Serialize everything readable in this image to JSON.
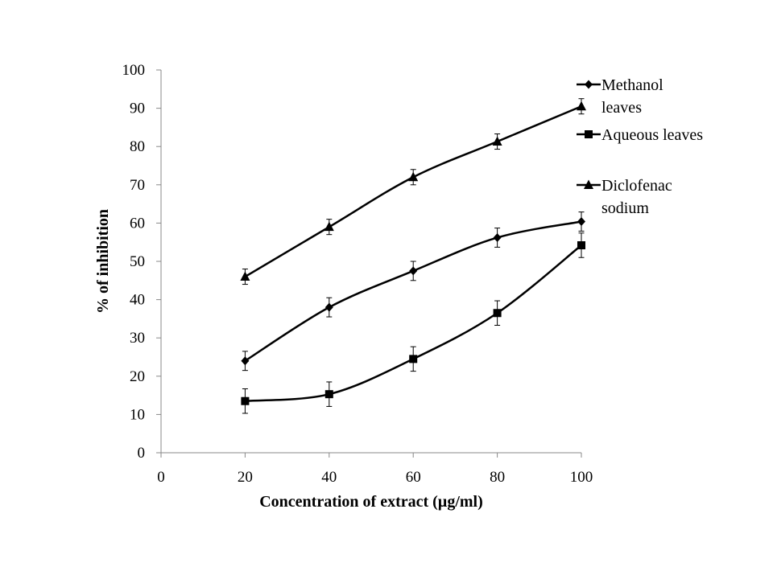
{
  "chart_data": {
    "type": "line",
    "title": "",
    "xlabel": "Concentration of extract (µg/ml)",
    "ylabel": "% of inhibition",
    "xlim": [
      0,
      100
    ],
    "ylim": [
      0,
      100
    ],
    "x_ticks": [
      "0",
      "20",
      "40",
      "60",
      "80",
      "100"
    ],
    "y_ticks": [
      "0",
      "10",
      "20",
      "30",
      "40",
      "50",
      "60",
      "70",
      "80",
      "90",
      "100"
    ],
    "grid": false,
    "legend_position": "top-right",
    "x": [
      20,
      40,
      60,
      80,
      100
    ],
    "series": [
      {
        "name": "Methanol leaves",
        "legend_lines": [
          "Methanol",
          "leaves"
        ],
        "marker": "diamond",
        "values": [
          24,
          38,
          47.5,
          56.2,
          60.4
        ],
        "errors": [
          2.5,
          2.5,
          2.5,
          2.5,
          2.5
        ]
      },
      {
        "name": "Aqueous leaves",
        "legend_lines": [
          "Aqueous leaves"
        ],
        "marker": "square",
        "values": [
          13.5,
          15.3,
          24.5,
          36.5,
          54.2
        ],
        "errors": [
          3.2,
          3.2,
          3.2,
          3.2,
          3.2
        ]
      },
      {
        "name": "Diclofenac sodium",
        "legend_lines": [
          "Diclofenac",
          "sodium"
        ],
        "marker": "triangle",
        "values": [
          46,
          59,
          72,
          81.3,
          90.5
        ],
        "errors": [
          2,
          2,
          2,
          2,
          2
        ]
      }
    ]
  }
}
